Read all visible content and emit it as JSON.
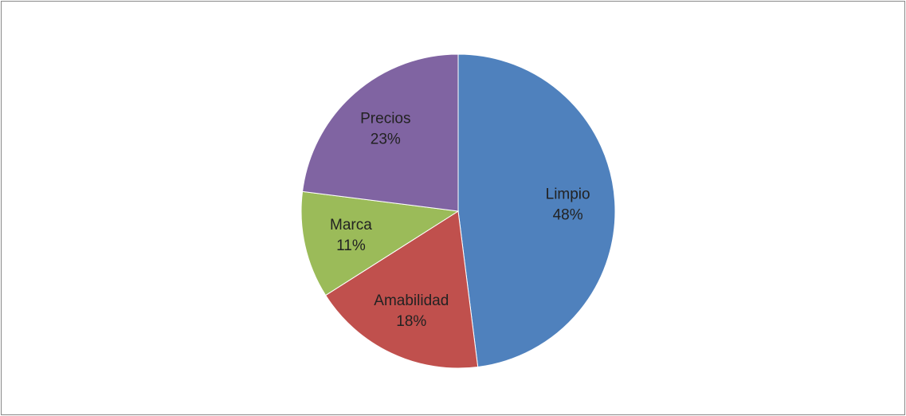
{
  "chart_data": {
    "type": "pie",
    "categories": [
      "Limpio",
      "Amabilidad",
      "Marca",
      "Precios"
    ],
    "values": [
      48,
      18,
      11,
      23
    ],
    "value_labels": [
      "48%",
      "18%",
      "11%",
      "23%"
    ],
    "colors": [
      "#4f81bd",
      "#c0504d",
      "#9bbb59",
      "#8064a2"
    ]
  }
}
